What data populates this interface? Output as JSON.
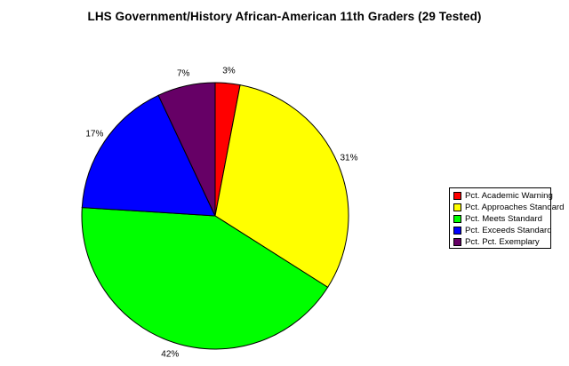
{
  "chart_data": {
    "type": "pie",
    "title": "LHS Government/History African-American 11th Graders (29 Tested)",
    "categories": [
      "Pct. Academic Warning",
      "Pct. Approaches Standard",
      "Pct. Meets Standard",
      "Pct. Exceeds Standard",
      "Pct. Pct. Exemplary"
    ],
    "values": [
      3,
      31,
      42,
      17,
      7
    ],
    "labels": [
      "3%",
      "31%",
      "42%",
      "17%",
      "7%"
    ],
    "colors": [
      "#ff0000",
      "#ffff00",
      "#00ff00",
      "#0000ff",
      "#660066"
    ],
    "legend": "right"
  }
}
